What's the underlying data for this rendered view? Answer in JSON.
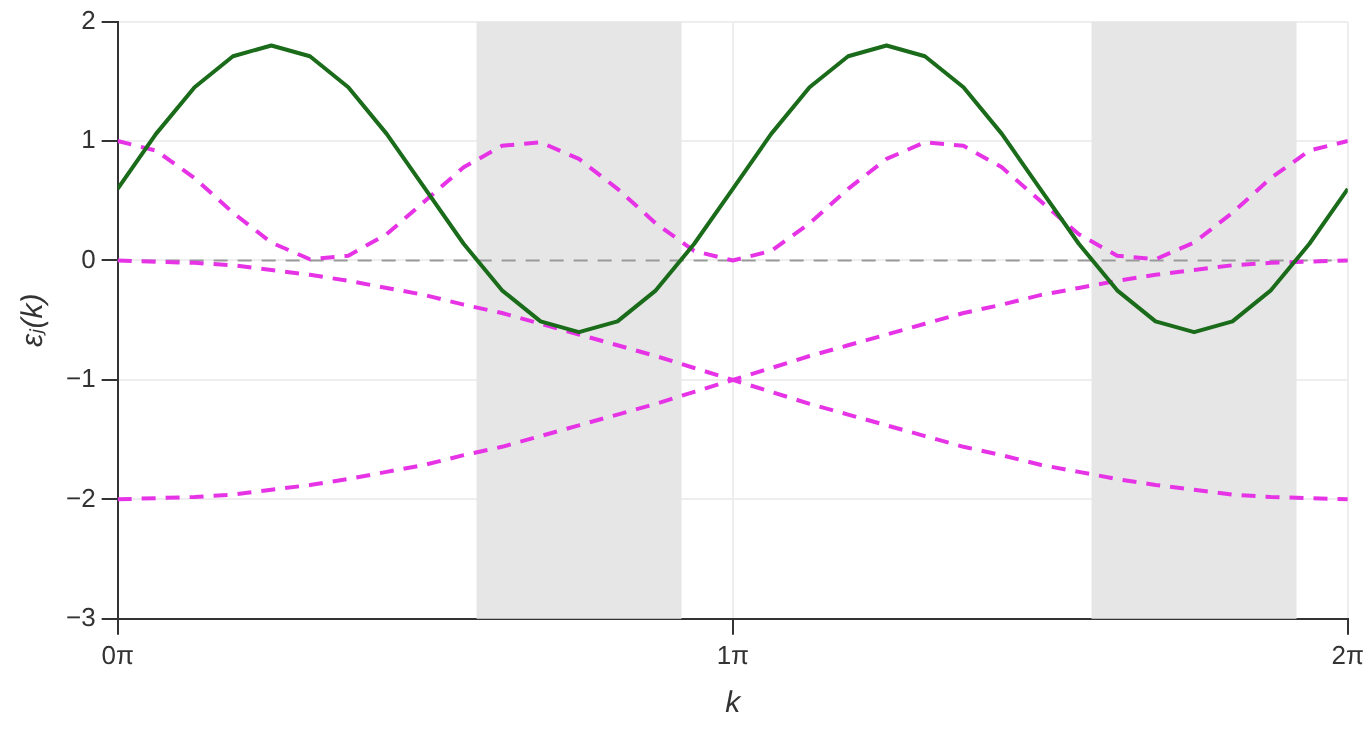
{
  "chart_data": {
    "type": "line",
    "xlabel": "k",
    "ylabel": "εⱼ(k)",
    "x": [
      0,
      0.196,
      0.393,
      0.589,
      0.785,
      0.982,
      1.178,
      1.374,
      1.571,
      1.767,
      1.963,
      2.16,
      2.356,
      2.553,
      2.749,
      2.945,
      3.142,
      3.338,
      3.534,
      3.731,
      3.927,
      4.123,
      4.32,
      4.516,
      4.712,
      4.909,
      5.105,
      5.301,
      5.498,
      5.694,
      5.89,
      6.087,
      6.283
    ],
    "series": [
      {
        "color": "#1a6b1a",
        "line_style": "solid",
        "values": [
          0.6,
          1.06,
          1.45,
          1.71,
          1.8,
          1.71,
          1.45,
          1.06,
          0.6,
          0.14,
          -0.25,
          -0.51,
          -0.6,
          -0.51,
          -0.25,
          0.14,
          0.6,
          1.06,
          1.45,
          1.71,
          1.8,
          1.71,
          1.45,
          1.06,
          0.6,
          0.14,
          -0.25,
          -0.51,
          -0.6,
          -0.51,
          -0.25,
          0.14,
          0.6
        ]
      },
      {
        "color": "#e633e6",
        "line_style": "dashed",
        "values": [
          1,
          0.92,
          0.69,
          0.4,
          0.15,
          0.01,
          0.04,
          0.22,
          0.5,
          0.78,
          0.96,
          0.99,
          0.85,
          0.6,
          0.31,
          0.08,
          0,
          0.08,
          0.31,
          0.6,
          0.85,
          0.99,
          0.96,
          0.78,
          0.5,
          0.22,
          0.04,
          0.01,
          0.15,
          0.4,
          0.69,
          0.92,
          1
        ]
      },
      {
        "color": "#e633e6",
        "line_style": "dashed",
        "values": [
          0,
          -0.01,
          -0.02,
          -0.04,
          -0.08,
          -0.12,
          -0.17,
          -0.23,
          -0.29,
          -0.37,
          -0.44,
          -0.53,
          -0.62,
          -0.71,
          -0.8,
          -0.9,
          -1,
          -1.1,
          -1.2,
          -1.29,
          -1.38,
          -1.47,
          -1.56,
          -1.63,
          -1.71,
          -1.77,
          -1.83,
          -1.88,
          -1.92,
          -1.96,
          -1.98,
          -1.99,
          -2
        ]
      },
      {
        "color": "#e633e6",
        "line_style": "dashed",
        "values": [
          -2,
          -1.99,
          -1.98,
          -1.96,
          -1.92,
          -1.88,
          -1.83,
          -1.77,
          -1.71,
          -1.63,
          -1.56,
          -1.47,
          -1.38,
          -1.29,
          -1.2,
          -1.1,
          -1,
          -0.9,
          -0.8,
          -0.71,
          -0.62,
          -0.53,
          -0.44,
          -0.37,
          -0.29,
          -0.23,
          -0.17,
          -0.12,
          -0.08,
          -0.04,
          -0.02,
          -0.01,
          0
        ]
      }
    ],
    "xlim": [
      0,
      6.283
    ],
    "xticks": [
      {
        "value": 0,
        "label": "0π"
      },
      {
        "value": 3.142,
        "label": "1π"
      },
      {
        "value": 6.283,
        "label": "2π"
      }
    ],
    "ylim": [
      -3,
      2
    ],
    "yticks": [
      {
        "value": -3,
        "label": "−3"
      },
      {
        "value": -2,
        "label": "−2"
      },
      {
        "value": -1,
        "label": "−1"
      },
      0,
      1,
      2
    ],
    "ref_lines": [
      {
        "axis": "y",
        "value": 0,
        "color": "#999999",
        "line_style": "dashed"
      }
    ],
    "bands": [
      {
        "axis": "x",
        "from": 1.833,
        "to": 2.88,
        "color": "#e6e6e6"
      },
      {
        "axis": "x",
        "from": 4.974,
        "to": 6.021,
        "color": "#e6e6e6"
      }
    ],
    "grid": true,
    "legend": false,
    "marker": "none"
  }
}
